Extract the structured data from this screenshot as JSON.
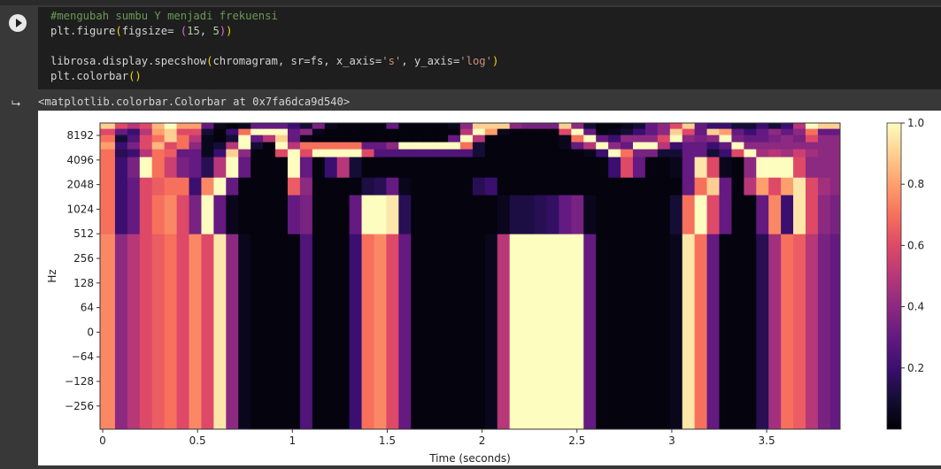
{
  "cell": {
    "run_button": "run-cell",
    "code_lines": [
      [
        {
          "text": "#mengubah sumbu Y menjadi frekuensi",
          "kind": "comment"
        }
      ],
      [
        {
          "text": "plt.figure",
          "kind": "plain"
        },
        {
          "text": "(",
          "kind": "paren"
        },
        {
          "text": "figsize= ",
          "kind": "plain"
        },
        {
          "text": "(",
          "kind": "paren2"
        },
        {
          "text": "15",
          "kind": "num"
        },
        {
          "text": ", ",
          "kind": "plain"
        },
        {
          "text": "5",
          "kind": "num"
        },
        {
          "text": ")",
          "kind": "paren2"
        },
        {
          "text": ")",
          "kind": "paren"
        }
      ],
      [],
      [
        {
          "text": "librosa.display.specshow",
          "kind": "plain"
        },
        {
          "text": "(",
          "kind": "paren"
        },
        {
          "text": "chromagram, sr=fs, x_axis=",
          "kind": "plain"
        },
        {
          "text": "'s'",
          "kind": "str"
        },
        {
          "text": ", y_axis=",
          "kind": "plain"
        },
        {
          "text": "'log'",
          "kind": "str"
        },
        {
          "text": ")",
          "kind": "paren"
        }
      ],
      [
        {
          "text": "plt.colorbar",
          "kind": "plain"
        },
        {
          "text": "()",
          "kind": "paren"
        }
      ]
    ]
  },
  "output": {
    "icon": "output-redirect-icon",
    "text": "<matplotlib.colorbar.Colorbar at 0x7fa6dca9d540>"
  },
  "chart_data": {
    "type": "heatmap",
    "colormap": "magma",
    "xlabel": "Time (seconds)",
    "ylabel": "Hz",
    "xlim": [
      -0.014,
      3.887
    ],
    "x_ticks": [
      "0",
      "0.5",
      "1",
      "1.5",
      "2",
      "2.5",
      "3",
      "3.5"
    ],
    "x_tick_values": [
      0,
      0.5,
      1,
      1.5,
      2,
      2.5,
      3,
      3.5
    ],
    "y_scale": "log",
    "y_ticks": [
      "8192",
      "4096",
      "2048",
      "1024",
      "512",
      "256",
      "128",
      "64",
      "0",
      "−64",
      "−128",
      "−256"
    ],
    "frame_duration": 0.065,
    "row_edges_hz": [
      null,
      512,
      1536,
      2518,
      4490,
      5600,
      6840,
      8350,
      9950,
      11580
    ],
    "rows_bottom_to_top": [
      [
        0.75,
        0.4,
        0.5,
        0.6,
        0.65,
        0.7,
        0.6,
        0.75,
        0.6,
        0.95,
        0.4,
        0.05,
        0.02,
        0.02,
        0.02,
        0.02,
        0.25,
        0.02,
        0.02,
        0.02,
        0.2,
        0.7,
        0.75,
        0.6,
        0.3,
        0.02,
        0.02,
        0.02,
        0.02,
        0.02,
        0.02,
        0.05,
        0.5,
        1,
        1,
        1,
        1,
        1,
        1,
        0.3,
        0.02,
        0.02,
        0.02,
        0.02,
        0.02,
        0.02,
        0.05,
        0.95,
        0.7,
        0.3,
        0.02,
        0.02,
        0.02,
        0.15,
        0.45,
        0.7,
        0.65,
        0.5,
        0.35,
        0.3
      ],
      [
        0.7,
        0.2,
        0.3,
        0.6,
        0.7,
        0.75,
        0.6,
        0.35,
        1,
        0.3,
        0.05,
        0.02,
        0.02,
        0.02,
        0.02,
        0.3,
        0.35,
        0.02,
        0.02,
        0.02,
        0.3,
        1,
        1,
        0.95,
        0.15,
        0.02,
        0.02,
        0.02,
        0.02,
        0.02,
        0.02,
        0.02,
        0.05,
        0.12,
        0.12,
        0.15,
        0.18,
        0.3,
        0.35,
        0.05,
        0.02,
        0.02,
        0.02,
        0.02,
        0.02,
        0.02,
        0.1,
        0.7,
        1,
        0.6,
        0.3,
        0.02,
        0.02,
        0.3,
        0.75,
        0.2,
        0.95,
        0.6,
        0.4,
        0.35
      ],
      [
        0.7,
        0.2,
        0.3,
        0.6,
        0.65,
        0.7,
        0.7,
        0.2,
        0.75,
        1,
        0.3,
        0.02,
        0.02,
        0.02,
        0.02,
        0.65,
        0.4,
        0.02,
        0.02,
        0.02,
        0.02,
        0.12,
        0.15,
        0.3,
        0.05,
        0.02,
        0.02,
        0.02,
        0.02,
        0.02,
        0.15,
        0.2,
        0.02,
        0.02,
        0.02,
        0.02,
        0.02,
        0.02,
        0.02,
        0.02,
        0.02,
        0.02,
        0.02,
        0.02,
        0.02,
        0.02,
        0.02,
        0.3,
        0.7,
        0.9,
        0.3,
        0.02,
        0.5,
        0.8,
        0.6,
        0.8,
        0.95,
        0.6,
        0.45,
        0.4
      ],
      [
        0.7,
        0.2,
        0.35,
        1,
        0.7,
        0.55,
        0.35,
        0.3,
        0.15,
        0.5,
        1,
        0.3,
        0.02,
        0.02,
        0.02,
        1,
        0.3,
        0.02,
        0.2,
        0.5,
        0.1,
        0.02,
        0.02,
        0.02,
        0.02,
        0.02,
        0.02,
        0.02,
        0.02,
        0.02,
        0.02,
        0.02,
        0.02,
        0.02,
        0.02,
        0.02,
        0.02,
        0.02,
        0.02,
        0.02,
        0.02,
        0.2,
        0.6,
        0.3,
        0.02,
        0.02,
        0.05,
        0.3,
        0.95,
        0.6,
        0.05,
        0.02,
        0.4,
        1,
        1,
        1,
        0.6,
        0.4,
        0.4,
        0.4
      ],
      [
        0.7,
        0.15,
        0.2,
        0.5,
        0.7,
        0.65,
        0.3,
        0.3,
        0.05,
        0.2,
        0.9,
        0.4,
        0.02,
        0.02,
        0.6,
        1,
        0.6,
        1,
        1,
        1,
        1,
        0.6,
        0.25,
        0.25,
        0.25,
        0.25,
        0.25,
        0.25,
        0.25,
        0.25,
        0.1,
        0.02,
        0.02,
        0.02,
        0.02,
        0.02,
        0.02,
        0.02,
        0.02,
        0.05,
        0.2,
        1,
        0.7,
        0.35,
        0.35,
        0.1,
        0.1,
        0.3,
        0.3,
        0.1,
        0.2,
        0.6,
        1,
        0.45,
        0.5,
        0.45,
        0.55,
        0.45,
        0.4,
        0.4
      ],
      [
        0.8,
        0.2,
        0.35,
        0.6,
        0.85,
        0.6,
        0.7,
        0.4,
        0.05,
        0.1,
        0.5,
        1,
        0.1,
        0.02,
        1,
        0.5,
        0.7,
        0.7,
        0.7,
        0.7,
        0.7,
        0.3,
        0.3,
        0.4,
        1,
        1,
        1,
        1,
        1,
        0.7,
        0.1,
        0.02,
        0.02,
        0.02,
        0.02,
        0.02,
        0.02,
        0.05,
        0.3,
        0.5,
        1,
        0.4,
        0.3,
        1,
        1,
        0.5,
        0.2,
        0.3,
        0.3,
        0.2,
        0.3,
        1,
        0.4,
        0.4,
        0.4,
        0.4,
        0.4,
        0.4,
        0.4,
        0.4
      ],
      [
        0.7,
        0.1,
        0.25,
        0.6,
        0.7,
        0.9,
        0.7,
        0.5,
        0.05,
        0.02,
        0.1,
        1,
        0.3,
        0.5,
        0.9,
        0.3,
        0.05,
        0.02,
        0.02,
        0.02,
        0.02,
        0.02,
        0.02,
        0.02,
        0.02,
        0.02,
        0.02,
        0.02,
        0.3,
        1,
        0.5,
        0.02,
        0.02,
        0.02,
        0.02,
        0.02,
        0.02,
        0.05,
        0.7,
        1,
        0.3,
        0.2,
        0.4,
        0.4,
        0.4,
        0.6,
        1,
        0.4,
        0.35,
        0.4,
        1,
        0.35,
        0.3,
        0.3,
        0.35,
        0.4,
        0.35,
        0.6,
        0.4,
        0.4
      ],
      [
        0.6,
        0.3,
        0.2,
        0.5,
        0.8,
        0.9,
        0.6,
        0.6,
        0.1,
        0.02,
        0.2,
        0.7,
        1,
        1,
        1,
        0.3,
        0.4,
        0.05,
        0.02,
        0.02,
        0.02,
        0.02,
        0.02,
        0.02,
        0.02,
        0.02,
        0.02,
        0.02,
        0.02,
        0.5,
        1,
        0.8,
        0.05,
        0.02,
        0.02,
        0.02,
        0.02,
        0.6,
        1,
        0.3,
        0.02,
        0.05,
        0.1,
        0.2,
        0.3,
        0.4,
        0.9,
        0.6,
        0.3,
        0.9,
        0.8,
        0.3,
        0.2,
        0.3,
        0.4,
        0.3,
        0.4,
        0.7,
        0.3,
        0.3
      ],
      [
        0.9,
        0.6,
        0.5,
        0.6,
        0.85,
        1,
        0.8,
        0.8,
        0.3,
        0.05,
        0.02,
        0.05,
        0.3,
        0.3,
        0.3,
        0.2,
        0.1,
        0.35,
        0.05,
        0.02,
        0.02,
        0.02,
        0.02,
        0.3,
        0.02,
        0.02,
        0.02,
        0.02,
        0.05,
        0.4,
        0.9,
        0.9,
        0.9,
        0.4,
        0.35,
        0.35,
        0.35,
        0.9,
        0.4,
        0.1,
        0.02,
        0.02,
        0.05,
        0.1,
        0.3,
        0.4,
        0.6,
        0.9,
        0.3,
        0.2,
        0.2,
        0.1,
        0.1,
        0.2,
        0.1,
        0.2,
        0.5,
        1,
        0.9,
        0.9
      ]
    ],
    "colorbar": {
      "range": [
        0,
        1
      ],
      "ticks": [
        "0.2",
        "0.4",
        "0.6",
        "0.8",
        "1.0"
      ],
      "tick_values": [
        0.2,
        0.4,
        0.6,
        0.8,
        1.0
      ]
    }
  }
}
